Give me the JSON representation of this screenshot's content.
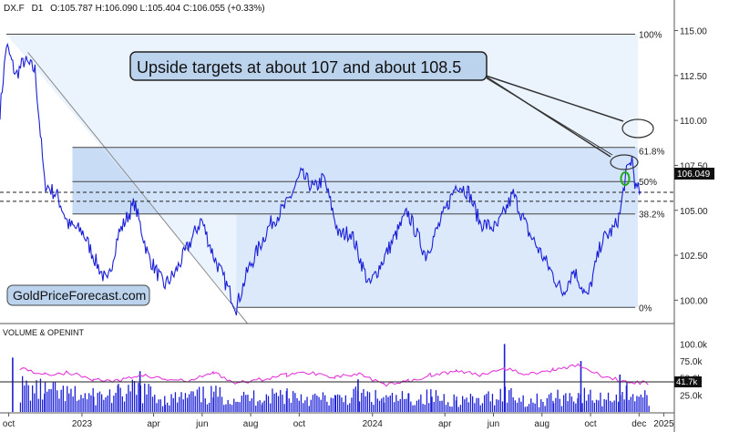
{
  "header": {
    "symbol": "DX.F",
    "timeframe": "D1",
    "ohlc": "O:105.787  H:106.090  L:105.404  C:106.055  (+0.33%)"
  },
  "watermark": "GoldPriceForecast.com",
  "callout": "Upside targets at about 107 and about 108.5",
  "last_price_badge": "106.049",
  "volume_panel": {
    "title": "VOLUME & OPENINT",
    "y_ticks": [
      "100.0k",
      "75.0k",
      "50.0k",
      "25.0k"
    ],
    "last_value_badge": "41.7k"
  },
  "colors": {
    "price_line": "#1a1fd6",
    "volume_bars": "#1a1fd6",
    "open_interest": "#e02ad6",
    "shade": "#dbe9fb",
    "shade_dark": "#c9dcf5",
    "callout_fill": "#bcd3ee",
    "target_circle": "#2a6a2a"
  },
  "chart_data": [
    {
      "type": "line",
      "title": "",
      "x": [
        "2022-10",
        "2022-11",
        "2022-12",
        "2023-01",
        "2023-02",
        "2023-03",
        "2023-04",
        "2023-05",
        "2023-06",
        "2023-07",
        "2023-08",
        "2023-09",
        "2023-10",
        "2023-11",
        "2023-12",
        "2024-01",
        "2024-02",
        "2024-03",
        "2024-04",
        "2024-05",
        "2024-06",
        "2024-07",
        "2024-08",
        "2024-09",
        "2024-10",
        "2024-11",
        "2024-12"
      ],
      "x_tick_labels": [
        "oct",
        "2023",
        "apr",
        "jun",
        "aug",
        "oct",
        "2024",
        "apr",
        "jun",
        "aug",
        "oct",
        "dec",
        "2025"
      ],
      "series": [
        {
          "values": [
            {
              "d": "2022-09-20",
              "v": 110.5
            },
            {
              "d": "2022-09-28",
              "v": 114.2
            },
            {
              "d": "2022-10-10",
              "v": 112.5
            },
            {
              "d": "2022-10-20",
              "v": 113.3
            },
            {
              "d": "2022-11-03",
              "v": 112.8
            },
            {
              "d": "2022-11-15",
              "v": 106.5
            },
            {
              "d": "2022-12-01",
              "v": 105.8
            },
            {
              "d": "2022-12-15",
              "v": 104.2
            },
            {
              "d": "2023-01-02",
              "v": 103.8
            },
            {
              "d": "2023-01-20",
              "v": 102.0
            },
            {
              "d": "2023-02-02",
              "v": 100.9
            },
            {
              "d": "2023-02-15",
              "v": 103.6
            },
            {
              "d": "2023-03-08",
              "v": 105.4
            },
            {
              "d": "2023-03-25",
              "v": 102.5
            },
            {
              "d": "2023-04-14",
              "v": 100.8
            },
            {
              "d": "2023-04-28",
              "v": 101.5
            },
            {
              "d": "2023-05-31",
              "v": 104.5
            },
            {
              "d": "2023-06-15",
              "v": 102.5
            },
            {
              "d": "2023-07-14",
              "v": 99.6
            },
            {
              "d": "2023-07-28",
              "v": 101.6
            },
            {
              "d": "2023-08-25",
              "v": 104.2
            },
            {
              "d": "2023-09-15",
              "v": 105.3
            },
            {
              "d": "2023-10-03",
              "v": 107.0
            },
            {
              "d": "2023-10-20",
              "v": 106.2
            },
            {
              "d": "2023-11-01",
              "v": 106.8
            },
            {
              "d": "2023-11-20",
              "v": 103.6
            },
            {
              "d": "2023-12-05",
              "v": 103.8
            },
            {
              "d": "2023-12-28",
              "v": 100.8
            },
            {
              "d": "2024-01-15",
              "v": 102.3
            },
            {
              "d": "2024-02-14",
              "v": 104.9
            },
            {
              "d": "2024-03-08",
              "v": 102.5
            },
            {
              "d": "2024-03-28",
              "v": 104.5
            },
            {
              "d": "2024-04-16",
              "v": 106.5
            },
            {
              "d": "2024-05-01",
              "v": 106.0
            },
            {
              "d": "2024-05-15",
              "v": 104.3
            },
            {
              "d": "2024-06-05",
              "v": 104.0
            },
            {
              "d": "2024-06-26",
              "v": 105.9
            },
            {
              "d": "2024-07-15",
              "v": 103.8
            },
            {
              "d": "2024-08-05",
              "v": 102.2
            },
            {
              "d": "2024-08-27",
              "v": 100.4
            },
            {
              "d": "2024-09-10",
              "v": 101.7
            },
            {
              "d": "2024-09-27",
              "v": 100.1
            },
            {
              "d": "2024-10-15",
              "v": 103.3
            },
            {
              "d": "2024-10-31",
              "v": 104.0
            },
            {
              "d": "2024-11-07",
              "v": 104.8
            },
            {
              "d": "2024-11-14",
              "v": 106.9
            },
            {
              "d": "2024-11-22",
              "v": 107.9
            },
            {
              "d": "2024-11-27",
              "v": 106.2
            },
            {
              "d": "2024-12-03",
              "v": 106.05
            }
          ]
        }
      ],
      "ylim": [
        98.7,
        116.7
      ],
      "y_ticks": [
        "115.00",
        "112.50",
        "110.00",
        "107.50",
        "105.00",
        "102.50",
        "100.00"
      ],
      "fib_levels": [
        {
          "label": "100%",
          "v": 114.8
        },
        {
          "label": "61.8%",
          "v": 108.5
        },
        {
          "label": "50%",
          "v": 106.6
        },
        {
          "label": "38.2%",
          "v": 104.8
        },
        {
          "label": "0%",
          "v": 99.6
        }
      ],
      "dashed_levels": [
        106.0,
        105.5
      ],
      "grid": false,
      "legend": "none"
    },
    {
      "type": "bar",
      "title": "VOLUME & OPENINT",
      "series": [
        {
          "name": "VOLUME",
          "values": [
            {
              "d": "2022-10",
              "v": 35
            },
            {
              "d": "2022-11",
              "v": 30
            },
            {
              "d": "2022-12",
              "v": 25
            },
            {
              "d": "2023-01",
              "v": 22
            },
            {
              "d": "2023-02",
              "v": 26
            },
            {
              "d": "2023-03",
              "v": 32
            },
            {
              "d": "2023-04",
              "v": 18
            },
            {
              "d": "2023-05",
              "v": 22
            },
            {
              "d": "2023-06",
              "v": 25
            },
            {
              "d": "2023-07",
              "v": 20
            },
            {
              "d": "2023-08",
              "v": 22
            },
            {
              "d": "2023-09",
              "v": 27
            },
            {
              "d": "2023-10",
              "v": 20
            },
            {
              "d": "2023-11",
              "v": 18
            },
            {
              "d": "2023-12",
              "v": 25
            },
            {
              "d": "2024-01",
              "v": 18
            },
            {
              "d": "2024-02",
              "v": 20
            },
            {
              "d": "2024-03",
              "v": 22
            },
            {
              "d": "2024-04",
              "v": 18
            },
            {
              "d": "2024-05",
              "v": 16
            },
            {
              "d": "2024-06",
              "v": 28
            },
            {
              "d": "2024-07",
              "v": 16
            },
            {
              "d": "2024-08",
              "v": 20
            },
            {
              "d": "2024-09",
              "v": 25
            },
            {
              "d": "2024-10",
              "v": 18
            },
            {
              "d": "2024-11",
              "v": 30
            },
            {
              "d": "2024-12",
              "v": 20
            }
          ]
        },
        {
          "name": "OPENINT",
          "values": [
            {
              "d": "2022-10",
              "v": 65
            },
            {
              "d": "2022-11",
              "v": 55
            },
            {
              "d": "2022-12",
              "v": 58
            },
            {
              "d": "2023-01",
              "v": 48
            },
            {
              "d": "2023-02",
              "v": 45
            },
            {
              "d": "2023-03",
              "v": 55
            },
            {
              "d": "2023-04",
              "v": 48
            },
            {
              "d": "2023-05",
              "v": 45
            },
            {
              "d": "2023-06",
              "v": 58
            },
            {
              "d": "2023-07",
              "v": 42
            },
            {
              "d": "2023-08",
              "v": 48
            },
            {
              "d": "2023-09",
              "v": 55
            },
            {
              "d": "2023-10",
              "v": 58
            },
            {
              "d": "2023-11",
              "v": 52
            },
            {
              "d": "2023-12",
              "v": 55
            },
            {
              "d": "2024-01",
              "v": 40
            },
            {
              "d": "2024-02",
              "v": 45
            },
            {
              "d": "2024-03",
              "v": 55
            },
            {
              "d": "2024-04",
              "v": 60
            },
            {
              "d": "2024-05",
              "v": 55
            },
            {
              "d": "2024-06",
              "v": 65
            },
            {
              "d": "2024-07",
              "v": 55
            },
            {
              "d": "2024-08",
              "v": 62
            },
            {
              "d": "2024-09",
              "v": 70
            },
            {
              "d": "2024-10",
              "v": 52
            },
            {
              "d": "2024-11",
              "v": 45
            },
            {
              "d": "2024-12",
              "v": 42
            }
          ]
        }
      ],
      "ylim": [
        0,
        110
      ],
      "grid": false,
      "legend": "none"
    }
  ]
}
